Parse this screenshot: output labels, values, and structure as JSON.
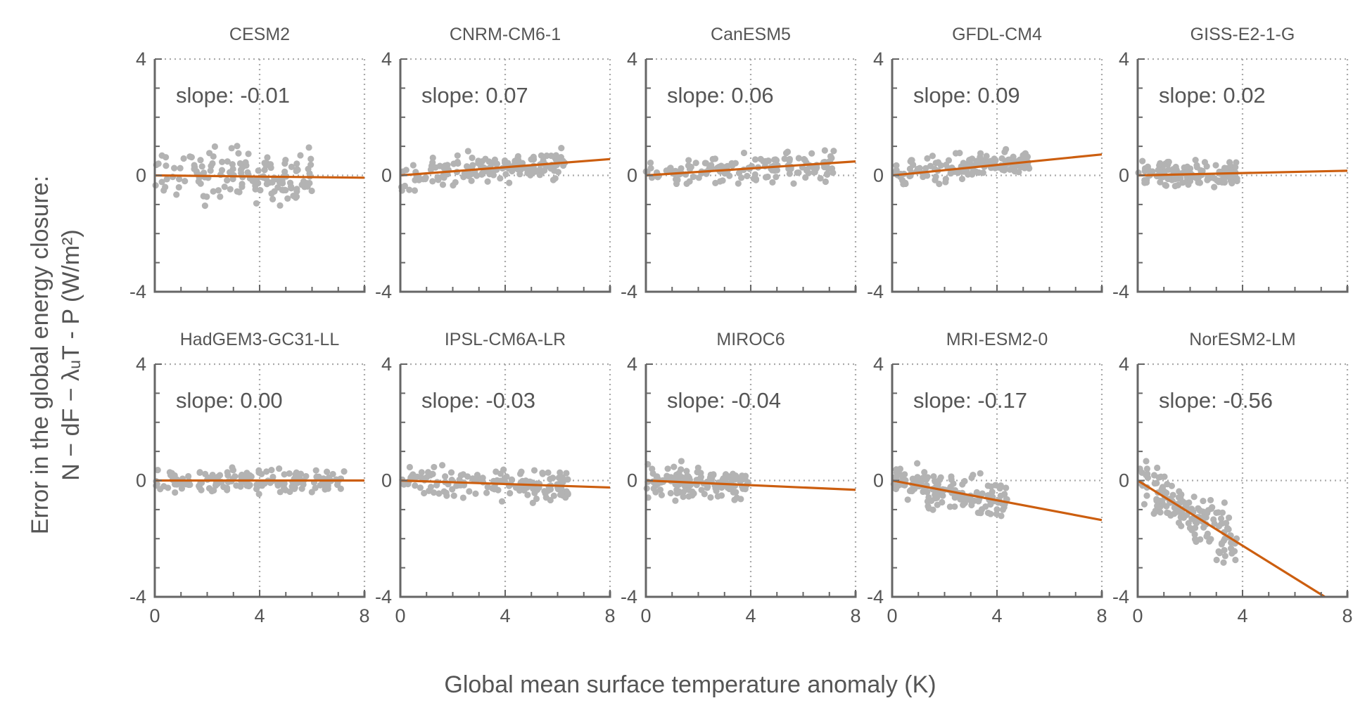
{
  "chart_data": {
    "type": "scatter",
    "layout": "2x5 small multiples",
    "xlabel": "Global mean surface temperature anomaly (K)",
    "ylabel_line1": "Error in the global energy closure:",
    "ylabel_line2": "N − dF − λᵤT - P (W/m²)",
    "xlim": [
      0,
      8
    ],
    "ylim": [
      -4,
      4
    ],
    "xticks": [
      0,
      4,
      8
    ],
    "yticks": [
      -4,
      0,
      4
    ],
    "x_ticklabels": [
      "0",
      "4",
      "8"
    ],
    "y_ticklabels": [
      "-4",
      "0",
      "4"
    ],
    "grid": "dotted reference lines at x=4 and y=0",
    "colors": {
      "points": "#b3b3b3",
      "fit": "#cc5e0f",
      "text": "#555555"
    },
    "panels": [
      {
        "name": "CESM2",
        "slope": -0.01,
        "slope_label": "slope: -0.01",
        "xmax": 6.0,
        "spread": 0.45
      },
      {
        "name": "CNRM-CM6-1",
        "slope": 0.07,
        "slope_label": "slope: 0.07",
        "xmax": 6.3,
        "spread": 0.25
      },
      {
        "name": "CanESM5",
        "slope": 0.06,
        "slope_label": "slope: 0.06",
        "xmax": 7.2,
        "spread": 0.25
      },
      {
        "name": "GFDL-CM4",
        "slope": 0.09,
        "slope_label": "slope: 0.09",
        "xmax": 5.3,
        "spread": 0.22
      },
      {
        "name": "GISS-E2-1-G",
        "slope": 0.02,
        "slope_label": "slope: 0.02",
        "xmax": 3.8,
        "spread": 0.2
      },
      {
        "name": "HadGEM3-GC31-LL",
        "slope": 0.0,
        "slope_label": "slope: 0.00",
        "xmax": 7.3,
        "spread": 0.2
      },
      {
        "name": "IPSL-CM6A-LR",
        "slope": -0.03,
        "slope_label": "slope: -0.03",
        "xmax": 6.4,
        "spread": 0.3
      },
      {
        "name": "MIROC6",
        "slope": -0.04,
        "slope_label": "slope: -0.04",
        "xmax": 3.9,
        "spread": 0.25
      },
      {
        "name": "MRI-ESM2-0",
        "slope": -0.17,
        "slope_label": "slope: -0.17",
        "xmax": 4.4,
        "spread": 0.3
      },
      {
        "name": "NorESM2-LM",
        "slope": -0.56,
        "slope_label": "slope: -0.56",
        "xmax": 3.8,
        "spread": 0.45
      }
    ]
  }
}
